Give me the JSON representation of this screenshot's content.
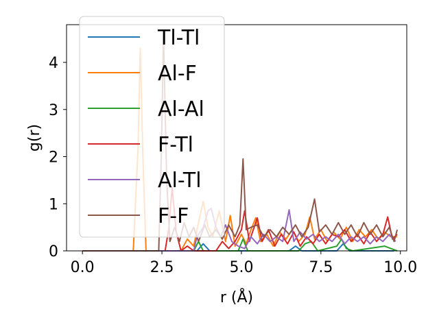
{
  "chart_data": {
    "type": "line",
    "title": "",
    "xlabel": "r (Å)",
    "ylabel": "g(r)",
    "xlim": [
      -0.5,
      10.2
    ],
    "ylim": [
      0,
      4.8
    ],
    "xticks": [
      0.0,
      2.5,
      5.0,
      7.5,
      10.0
    ],
    "xtick_labels": [
      "0.0",
      "2.5",
      "5.0",
      "7.5",
      "10.0"
    ],
    "yticks": [
      0,
      1,
      2,
      3,
      4
    ],
    "ytick_labels": [
      "0",
      "1",
      "2",
      "3",
      "4"
    ],
    "legend_position": "top-left",
    "grid": false,
    "series": [
      {
        "name": "Tl-Tl",
        "color": "#1f77b4",
        "points": [
          [
            0,
            0
          ],
          [
            3.6,
            0
          ],
          [
            3.8,
            0.15
          ],
          [
            4.0,
            0
          ],
          [
            6.5,
            0
          ],
          [
            6.7,
            0.1
          ],
          [
            6.9,
            0
          ],
          [
            8.0,
            0
          ],
          [
            8.2,
            0.15
          ],
          [
            8.4,
            0
          ],
          [
            9.8,
            0
          ]
        ]
      },
      {
        "name": "Al-F",
        "color": "#ff7f0e",
        "points": [
          [
            0,
            0
          ],
          [
            1.6,
            0
          ],
          [
            1.75,
            2.2
          ],
          [
            1.82,
            4.3
          ],
          [
            1.9,
            2.0
          ],
          [
            2.0,
            0
          ],
          [
            3.1,
            0
          ],
          [
            3.3,
            0.25
          ],
          [
            3.5,
            0.1
          ],
          [
            3.65,
            0.6
          ],
          [
            3.8,
            1.05
          ],
          [
            3.95,
            0.5
          ],
          [
            4.1,
            0.3
          ],
          [
            4.3,
            0.85
          ],
          [
            4.5,
            0.2
          ],
          [
            4.65,
            0.75
          ],
          [
            4.8,
            0.1
          ],
          [
            5.0,
            0.35
          ],
          [
            5.15,
            0.15
          ],
          [
            5.3,
            0.45
          ],
          [
            5.45,
            0.7
          ],
          [
            5.6,
            0.2
          ],
          [
            5.8,
            0.35
          ],
          [
            6.0,
            0.1
          ],
          [
            6.2,
            0.4
          ],
          [
            6.4,
            0.25
          ],
          [
            6.6,
            0.45
          ],
          [
            6.8,
            0.2
          ],
          [
            7.0,
            0.35
          ],
          [
            7.15,
            0.72
          ],
          [
            7.3,
            0.25
          ],
          [
            7.5,
            0.45
          ],
          [
            7.7,
            0.2
          ],
          [
            7.9,
            0.4
          ],
          [
            8.1,
            0.25
          ],
          [
            8.3,
            0.5
          ],
          [
            8.5,
            0.2
          ],
          [
            8.7,
            0.45
          ],
          [
            8.9,
            0.3
          ],
          [
            9.1,
            0.45
          ],
          [
            9.3,
            0.25
          ],
          [
            9.5,
            0.4
          ],
          [
            9.7,
            0.3
          ],
          [
            9.9,
            0.3
          ]
        ]
      },
      {
        "name": "Al-Al",
        "color": "#2ca02c",
        "points": [
          [
            0,
            0
          ],
          [
            3.5,
            0
          ],
          [
            3.65,
            0.2
          ],
          [
            3.8,
            0
          ],
          [
            4.9,
            0
          ],
          [
            5.05,
            0.25
          ],
          [
            5.2,
            0
          ],
          [
            6.8,
            0
          ],
          [
            7.0,
            0.15
          ],
          [
            7.2,
            0.2
          ],
          [
            7.4,
            0
          ],
          [
            8.0,
            0.1
          ],
          [
            8.15,
            0.25
          ],
          [
            8.3,
            0.05
          ],
          [
            8.5,
            0
          ],
          [
            9.5,
            0.1
          ],
          [
            9.7,
            0.05
          ],
          [
            9.9,
            0
          ]
        ]
      },
      {
        "name": "F-Tl",
        "color": "#d62728",
        "points": [
          [
            0,
            0
          ],
          [
            2.6,
            0
          ],
          [
            2.72,
            0.5
          ],
          [
            2.82,
            1.35
          ],
          [
            2.95,
            0.4
          ],
          [
            3.1,
            0
          ],
          [
            3.3,
            0.1
          ],
          [
            3.5,
            0
          ],
          [
            4.2,
            0
          ],
          [
            4.4,
            0.2
          ],
          [
            4.6,
            0.05
          ],
          [
            4.8,
            0.2
          ],
          [
            5.0,
            0.45
          ],
          [
            5.1,
            0.85
          ],
          [
            5.25,
            0.2
          ],
          [
            5.4,
            0.5
          ],
          [
            5.5,
            0.7
          ],
          [
            5.65,
            0.2
          ],
          [
            5.85,
            0.45
          ],
          [
            6.05,
            0.1
          ],
          [
            6.25,
            0.35
          ],
          [
            6.45,
            0.15
          ],
          [
            6.65,
            0.4
          ],
          [
            6.85,
            0.1
          ],
          [
            7.05,
            0.3
          ],
          [
            7.25,
            0.15
          ],
          [
            7.45,
            0.35
          ],
          [
            7.65,
            0.15
          ],
          [
            7.85,
            0.35
          ],
          [
            8.05,
            0.3
          ],
          [
            8.25,
            0.45
          ],
          [
            8.45,
            0.2
          ],
          [
            8.65,
            0.35
          ],
          [
            8.85,
            0.15
          ],
          [
            9.05,
            0.4
          ],
          [
            9.25,
            0.2
          ],
          [
            9.45,
            0.35
          ],
          [
            9.6,
            0.72
          ],
          [
            9.75,
            0.25
          ],
          [
            9.9,
            0.35
          ]
        ]
      },
      {
        "name": "Al-Tl",
        "color": "#9467bd",
        "points": [
          [
            0,
            0
          ],
          [
            3.5,
            0
          ],
          [
            3.6,
            0.3
          ],
          [
            3.8,
            0.5
          ],
          [
            3.95,
            0.85
          ],
          [
            4.05,
            0.9
          ],
          [
            4.2,
            0.5
          ],
          [
            4.35,
            0.3
          ],
          [
            4.5,
            0.55
          ],
          [
            4.7,
            0.2
          ],
          [
            4.9,
            0.1
          ],
          [
            5.1,
            0.05
          ],
          [
            5.3,
            0.3
          ],
          [
            5.5,
            0.15
          ],
          [
            5.7,
            0.35
          ],
          [
            5.9,
            0.2
          ],
          [
            6.1,
            0.3
          ],
          [
            6.3,
            0.2
          ],
          [
            6.5,
            0.87
          ],
          [
            6.65,
            0.2
          ],
          [
            6.85,
            0.4
          ],
          [
            7.05,
            0.25
          ],
          [
            7.25,
            0.35
          ],
          [
            7.45,
            0.2
          ],
          [
            7.65,
            0.3
          ],
          [
            7.85,
            0.2
          ],
          [
            8.05,
            0.35
          ],
          [
            8.25,
            0.15
          ],
          [
            8.45,
            0.3
          ],
          [
            8.65,
            0.2
          ],
          [
            8.85,
            0.3
          ],
          [
            9.05,
            0.15
          ],
          [
            9.25,
            0.3
          ],
          [
            9.45,
            0.2
          ],
          [
            9.65,
            0.35
          ],
          [
            9.85,
            0.2
          ]
        ]
      },
      {
        "name": "F-F",
        "color": "#8c564b",
        "points": [
          [
            0,
            0
          ],
          [
            2.4,
            0
          ],
          [
            2.48,
            2.0
          ],
          [
            2.55,
            4.55
          ],
          [
            2.65,
            1.5
          ],
          [
            2.75,
            0.2
          ],
          [
            2.9,
            0.5
          ],
          [
            3.05,
            0.2
          ],
          [
            3.2,
            0.6
          ],
          [
            3.35,
            0.3
          ],
          [
            3.5,
            0.5
          ],
          [
            3.65,
            0.2
          ],
          [
            3.85,
            0.55
          ],
          [
            4.0,
            0.3
          ],
          [
            4.2,
            0.45
          ],
          [
            4.4,
            0.25
          ],
          [
            4.6,
            0.55
          ],
          [
            4.8,
            0.3
          ],
          [
            4.95,
            0.55
          ],
          [
            5.05,
            1.95
          ],
          [
            5.15,
            0.45
          ],
          [
            5.3,
            0.5
          ],
          [
            5.5,
            0.55
          ],
          [
            5.7,
            0.3
          ],
          [
            5.9,
            0.45
          ],
          [
            6.1,
            0.3
          ],
          [
            6.3,
            0.5
          ],
          [
            6.5,
            0.35
          ],
          [
            6.7,
            0.55
          ],
          [
            6.9,
            0.3
          ],
          [
            7.1,
            0.5
          ],
          [
            7.3,
            1.1
          ],
          [
            7.45,
            0.4
          ],
          [
            7.65,
            0.55
          ],
          [
            7.85,
            0.35
          ],
          [
            8.05,
            0.6
          ],
          [
            8.25,
            0.35
          ],
          [
            8.45,
            0.55
          ],
          [
            8.65,
            0.3
          ],
          [
            8.85,
            0.6
          ],
          [
            9.05,
            0.35
          ],
          [
            9.25,
            0.55
          ],
          [
            9.45,
            0.3
          ],
          [
            9.65,
            0.5
          ],
          [
            9.8,
            0.2
          ],
          [
            9.9,
            0.45
          ]
        ]
      }
    ]
  }
}
